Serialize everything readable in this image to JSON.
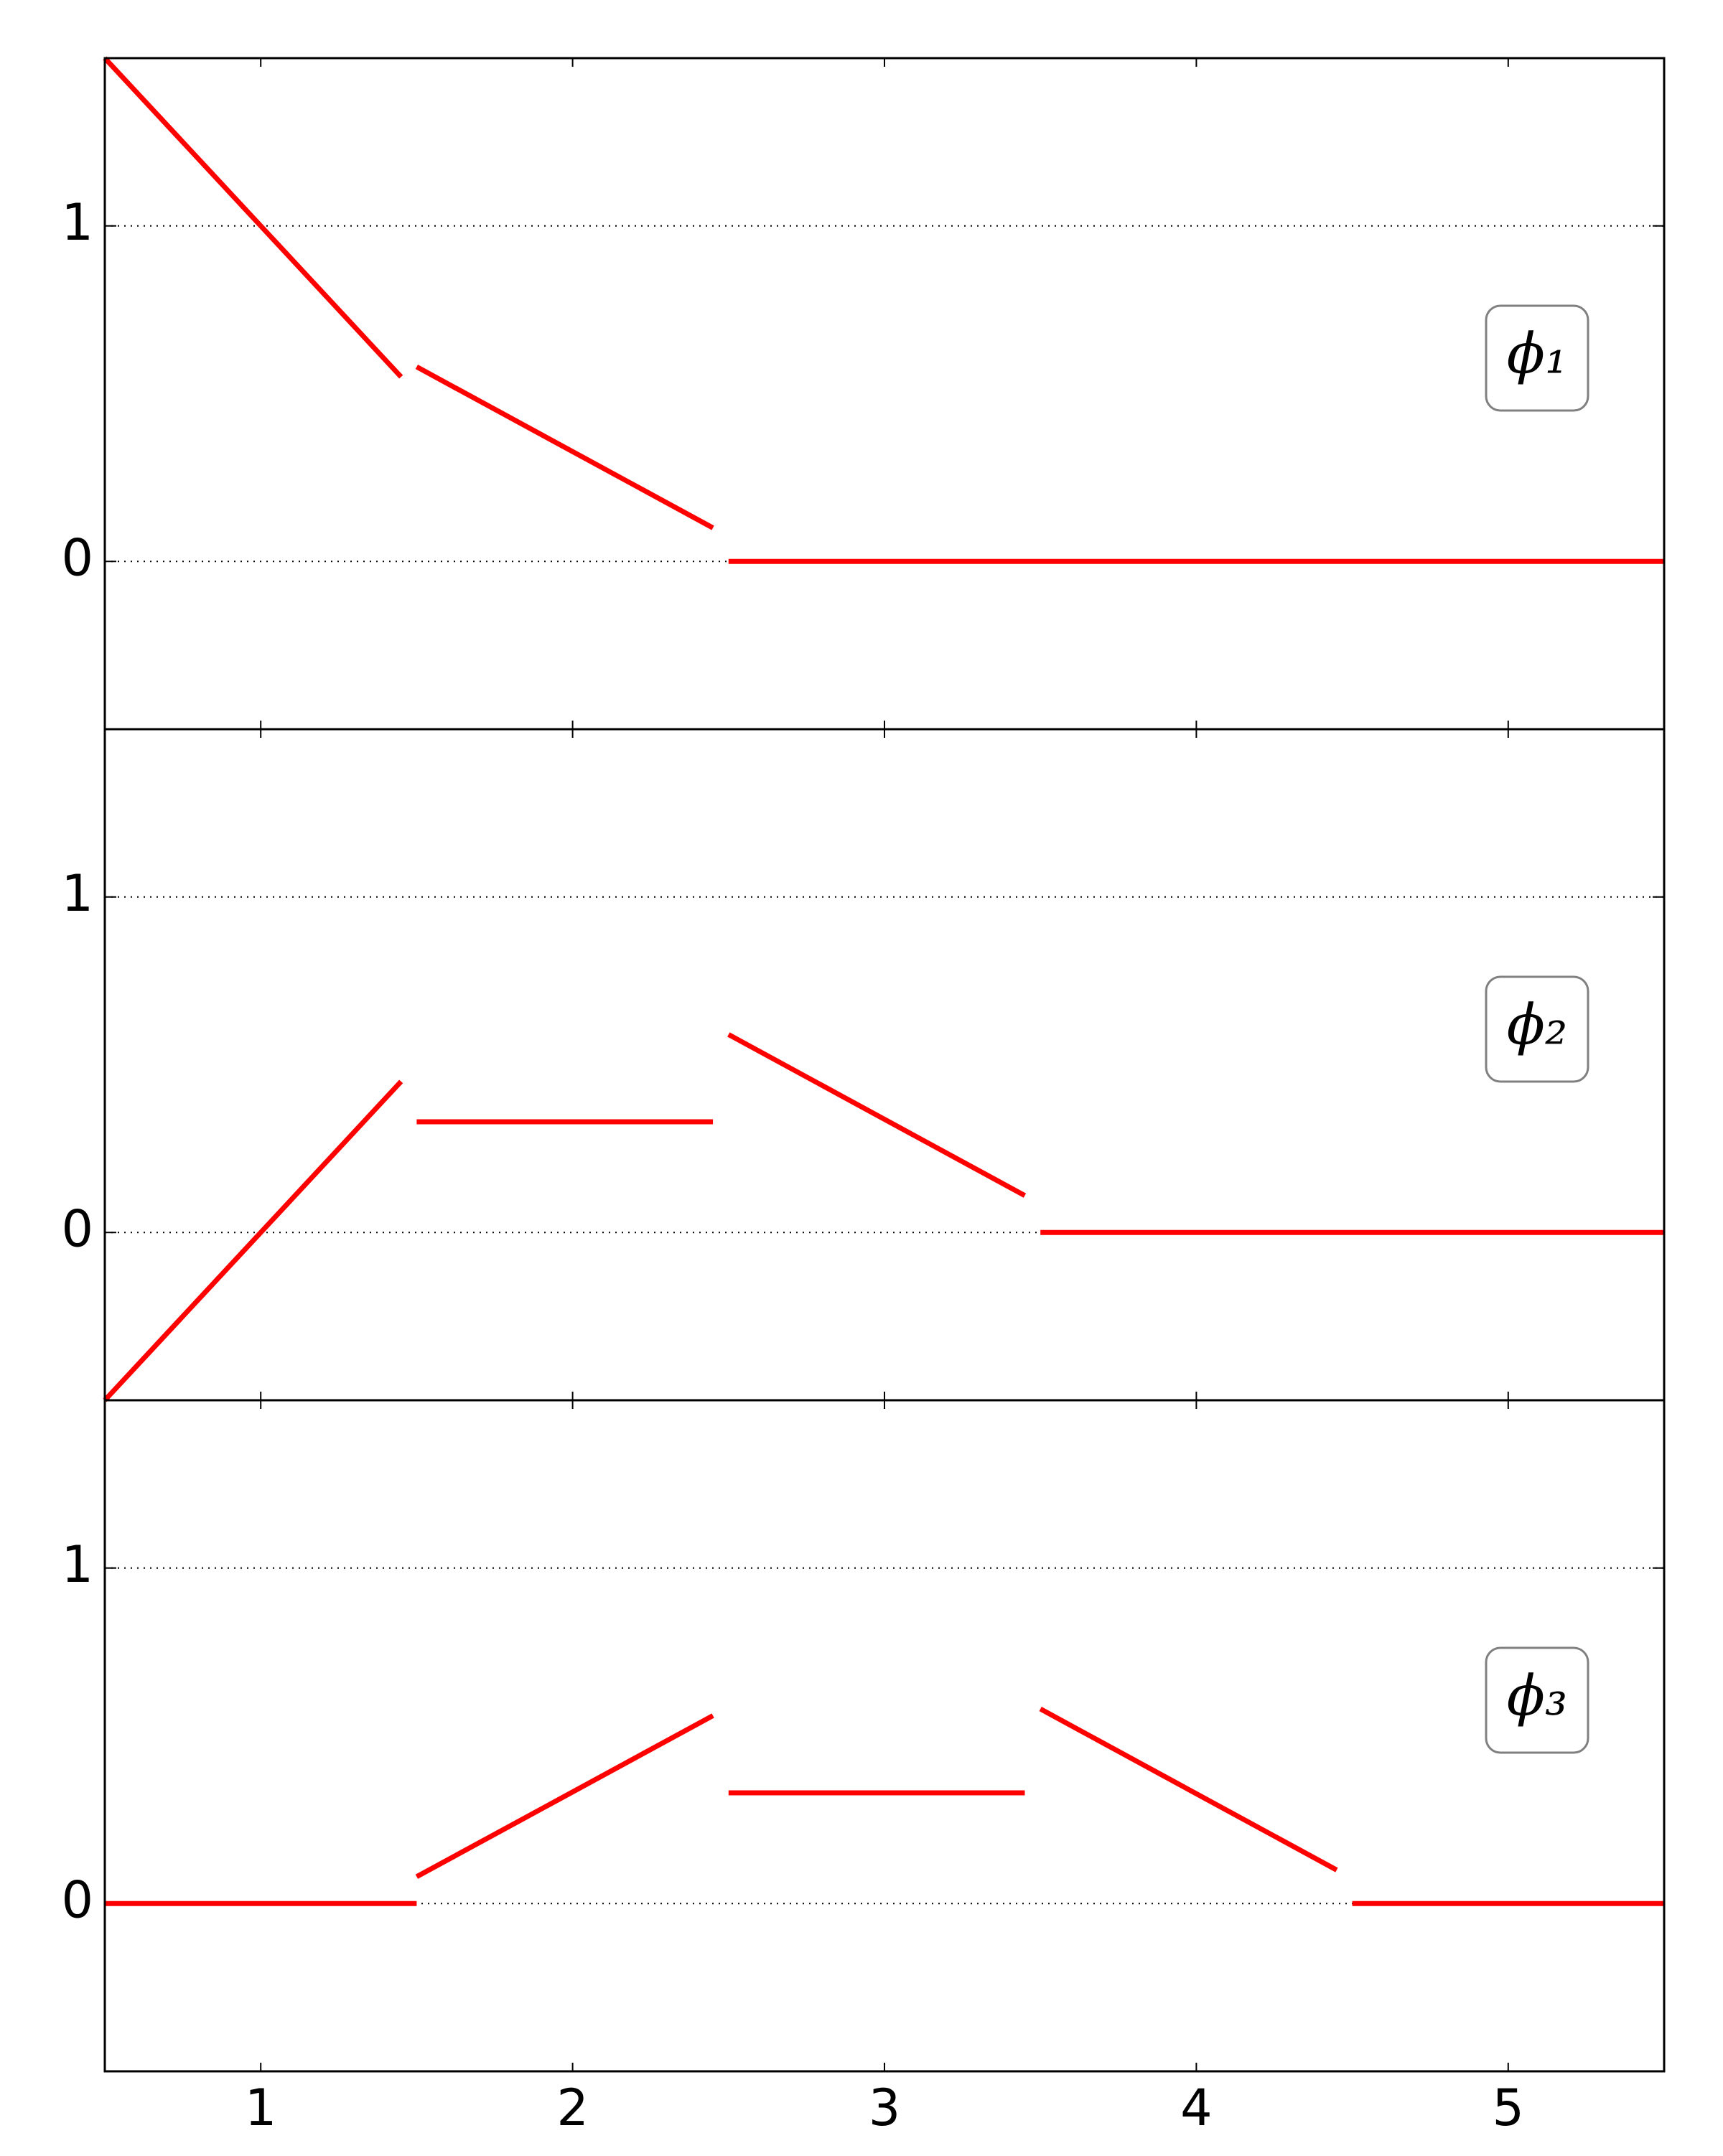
{
  "chart_data": [
    {
      "type": "line",
      "annotation": "ϕ₁",
      "color": "#ff0000",
      "x": [
        0.5,
        1.45,
        1.475,
        1.5,
        2.45,
        2.475,
        2.5,
        5.5
      ],
      "values": [
        1.5,
        0.55,
        null,
        0.58,
        0.1,
        null,
        0,
        0
      ],
      "xlim": [
        0.5,
        5.5
      ],
      "ylim": [
        -0.5,
        1.5
      ],
      "xticks": [
        1,
        2,
        3,
        4,
        5
      ],
      "yticks": [
        0,
        1
      ],
      "grid": true
    },
    {
      "type": "line",
      "annotation": "ϕ₂",
      "color": "#ff0000",
      "x": [
        0.5,
        1.45,
        1.475,
        1.5,
        2.45,
        2.475,
        2.5,
        3.45,
        3.475,
        3.5,
        5.5
      ],
      "values": [
        -0.5,
        0.45,
        null,
        0.33,
        0.33,
        null,
        0.59,
        0.11,
        null,
        0,
        0
      ],
      "xlim": [
        0.5,
        5.5
      ],
      "ylim": [
        -0.5,
        1.5
      ],
      "xticks": [
        1,
        2,
        3,
        4,
        5
      ],
      "yticks": [
        0,
        1
      ],
      "grid": true
    },
    {
      "type": "line",
      "annotation": "ϕ₃",
      "color": "#ff0000",
      "x": [
        0.5,
        1.5,
        1.5,
        1.5,
        2.45,
        2.475,
        2.5,
        3.45,
        3.475,
        3.5,
        4.45,
        4.475,
        4.5,
        5.5
      ],
      "values": [
        0,
        0,
        null,
        0.08,
        0.56,
        null,
        0.33,
        0.33,
        null,
        0.58,
        0.1,
        null,
        0,
        0
      ],
      "xlim": [
        0.5,
        5.5
      ],
      "ylim": [
        -0.5,
        1.5
      ],
      "xticks": [
        1,
        2,
        3,
        4,
        5
      ],
      "yticks": [
        0,
        1
      ],
      "grid": true
    }
  ]
}
